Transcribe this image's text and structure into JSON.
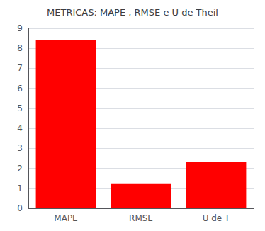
{
  "chart_data": {
    "type": "bar",
    "title": "METRICAS: MAPE , RMSE e U de Theil",
    "categories": [
      "MAPE",
      "RMSE",
      "U de T"
    ],
    "values": [
      8.4,
      1.25,
      2.3
    ],
    "color": "#FF0000",
    "ylim": [
      0,
      9
    ],
    "yticks": [
      0,
      1,
      2,
      3,
      4,
      5,
      6,
      7,
      8,
      9
    ],
    "grid": true
  }
}
